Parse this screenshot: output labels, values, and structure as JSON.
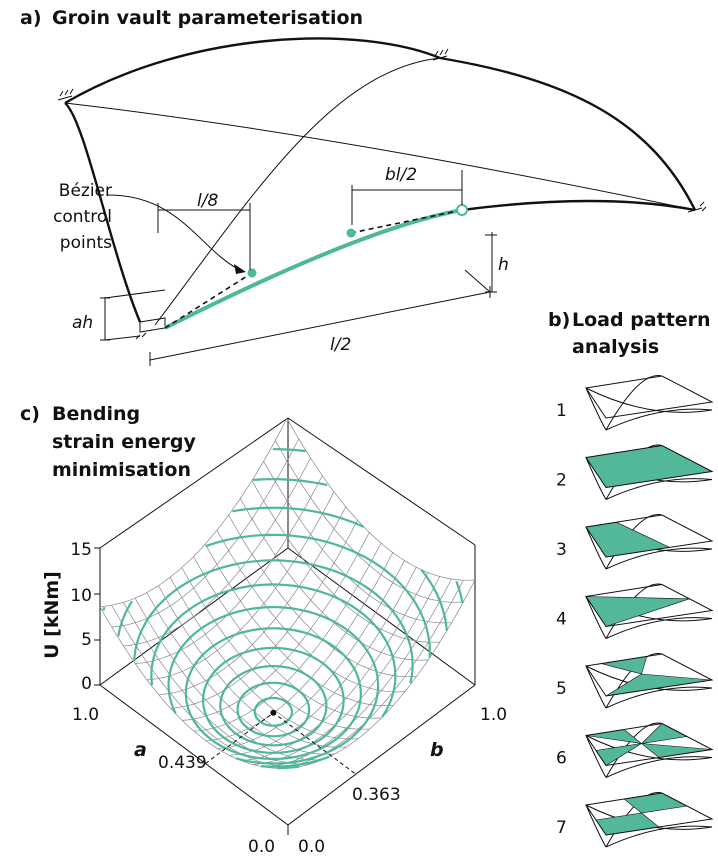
{
  "panel_a": {
    "label": "a)",
    "title": "Groin vault parameterisation",
    "bezier_label": [
      "Bézier",
      "control",
      "points"
    ],
    "dim_l8": "l/8",
    "dim_bl2": "bl/2",
    "dim_h": "h",
    "dim_ah": "ah",
    "dim_l2": "l/2"
  },
  "panel_b": {
    "label": "b)",
    "title_lines": [
      "Load pattern",
      "analysis"
    ],
    "patterns": [
      "1",
      "2",
      "3",
      "4",
      "5",
      "6",
      "7"
    ]
  },
  "panel_c": {
    "label": "c)",
    "title_lines": [
      "Bending",
      "strain energy",
      "minimisation"
    ],
    "z_axis_label": "U [kNm]",
    "z_ticks": [
      "15",
      "10",
      "5",
      "0"
    ],
    "a_axis": {
      "name": "a",
      "top": "1.0",
      "optimum": "0.439",
      "bottom": "0.0"
    },
    "b_axis": {
      "name": "b",
      "top": "1.0",
      "optimum": "0.363",
      "bottom": "0.0"
    }
  }
}
